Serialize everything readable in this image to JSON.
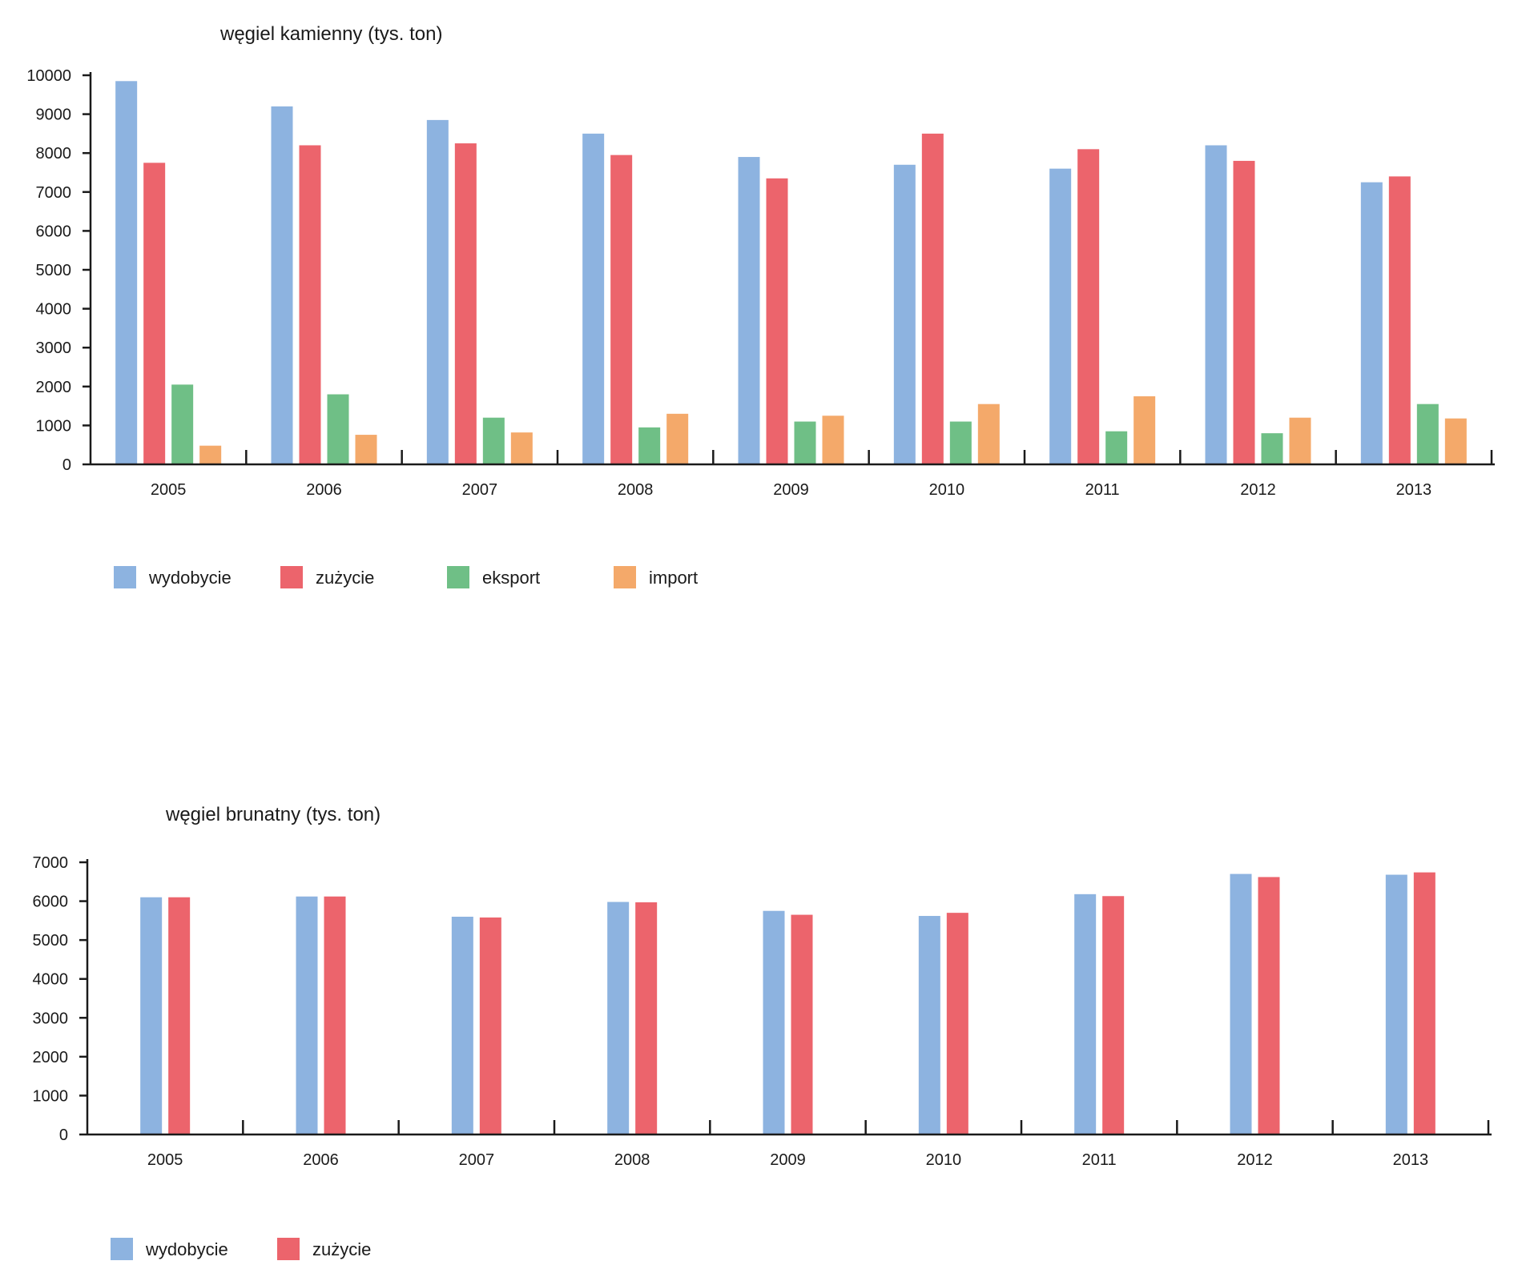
{
  "chart_data": [
    {
      "type": "bar",
      "title": "węgiel kamienny (tys. ton)",
      "categories": [
        "2005",
        "2006",
        "2007",
        "2008",
        "2009",
        "2010",
        "2011",
        "2012",
        "2013"
      ],
      "ylim": [
        0,
        10000
      ],
      "yticks": [
        0,
        1000,
        2000,
        3000,
        4000,
        5000,
        6000,
        7000,
        8000,
        9000,
        10000
      ],
      "grid": false,
      "legend_position": "bottom-left",
      "series": [
        {
          "name": "wydobycie",
          "color": "#8db3e0",
          "values": [
            9850,
            9200,
            8850,
            8500,
            7900,
            7700,
            7600,
            8200,
            7250
          ]
        },
        {
          "name": "zużycie",
          "color": "#ec646c",
          "values": [
            7750,
            8200,
            8250,
            7950,
            7350,
            8500,
            8100,
            7800,
            7400
          ]
        },
        {
          "name": "eksport",
          "color": "#6fbf86",
          "values": [
            2050,
            1800,
            1200,
            950,
            1100,
            1100,
            850,
            800,
            1550
          ]
        },
        {
          "name": "import",
          "color": "#f4a96a",
          "values": [
            480,
            760,
            820,
            1300,
            1250,
            1550,
            1750,
            1200,
            1180
          ]
        }
      ]
    },
    {
      "type": "bar",
      "title": "węgiel brunatny (tys. ton)",
      "categories": [
        "2005",
        "2006",
        "2007",
        "2008",
        "2009",
        "2010",
        "2011",
        "2012",
        "2013"
      ],
      "ylim": [
        0,
        7000
      ],
      "yticks": [
        0,
        1000,
        2000,
        3000,
        4000,
        5000,
        6000,
        7000
      ],
      "grid": false,
      "legend_position": "bottom-left",
      "series": [
        {
          "name": "wydobycie",
          "color": "#8db3e0",
          "values": [
            6100,
            6120,
            5600,
            5980,
            5750,
            5620,
            6180,
            6700,
            6680
          ]
        },
        {
          "name": "zużycie",
          "color": "#ec646c",
          "values": [
            6100,
            6120,
            5580,
            5970,
            5650,
            5700,
            6130,
            6620,
            6740
          ]
        }
      ]
    }
  ]
}
